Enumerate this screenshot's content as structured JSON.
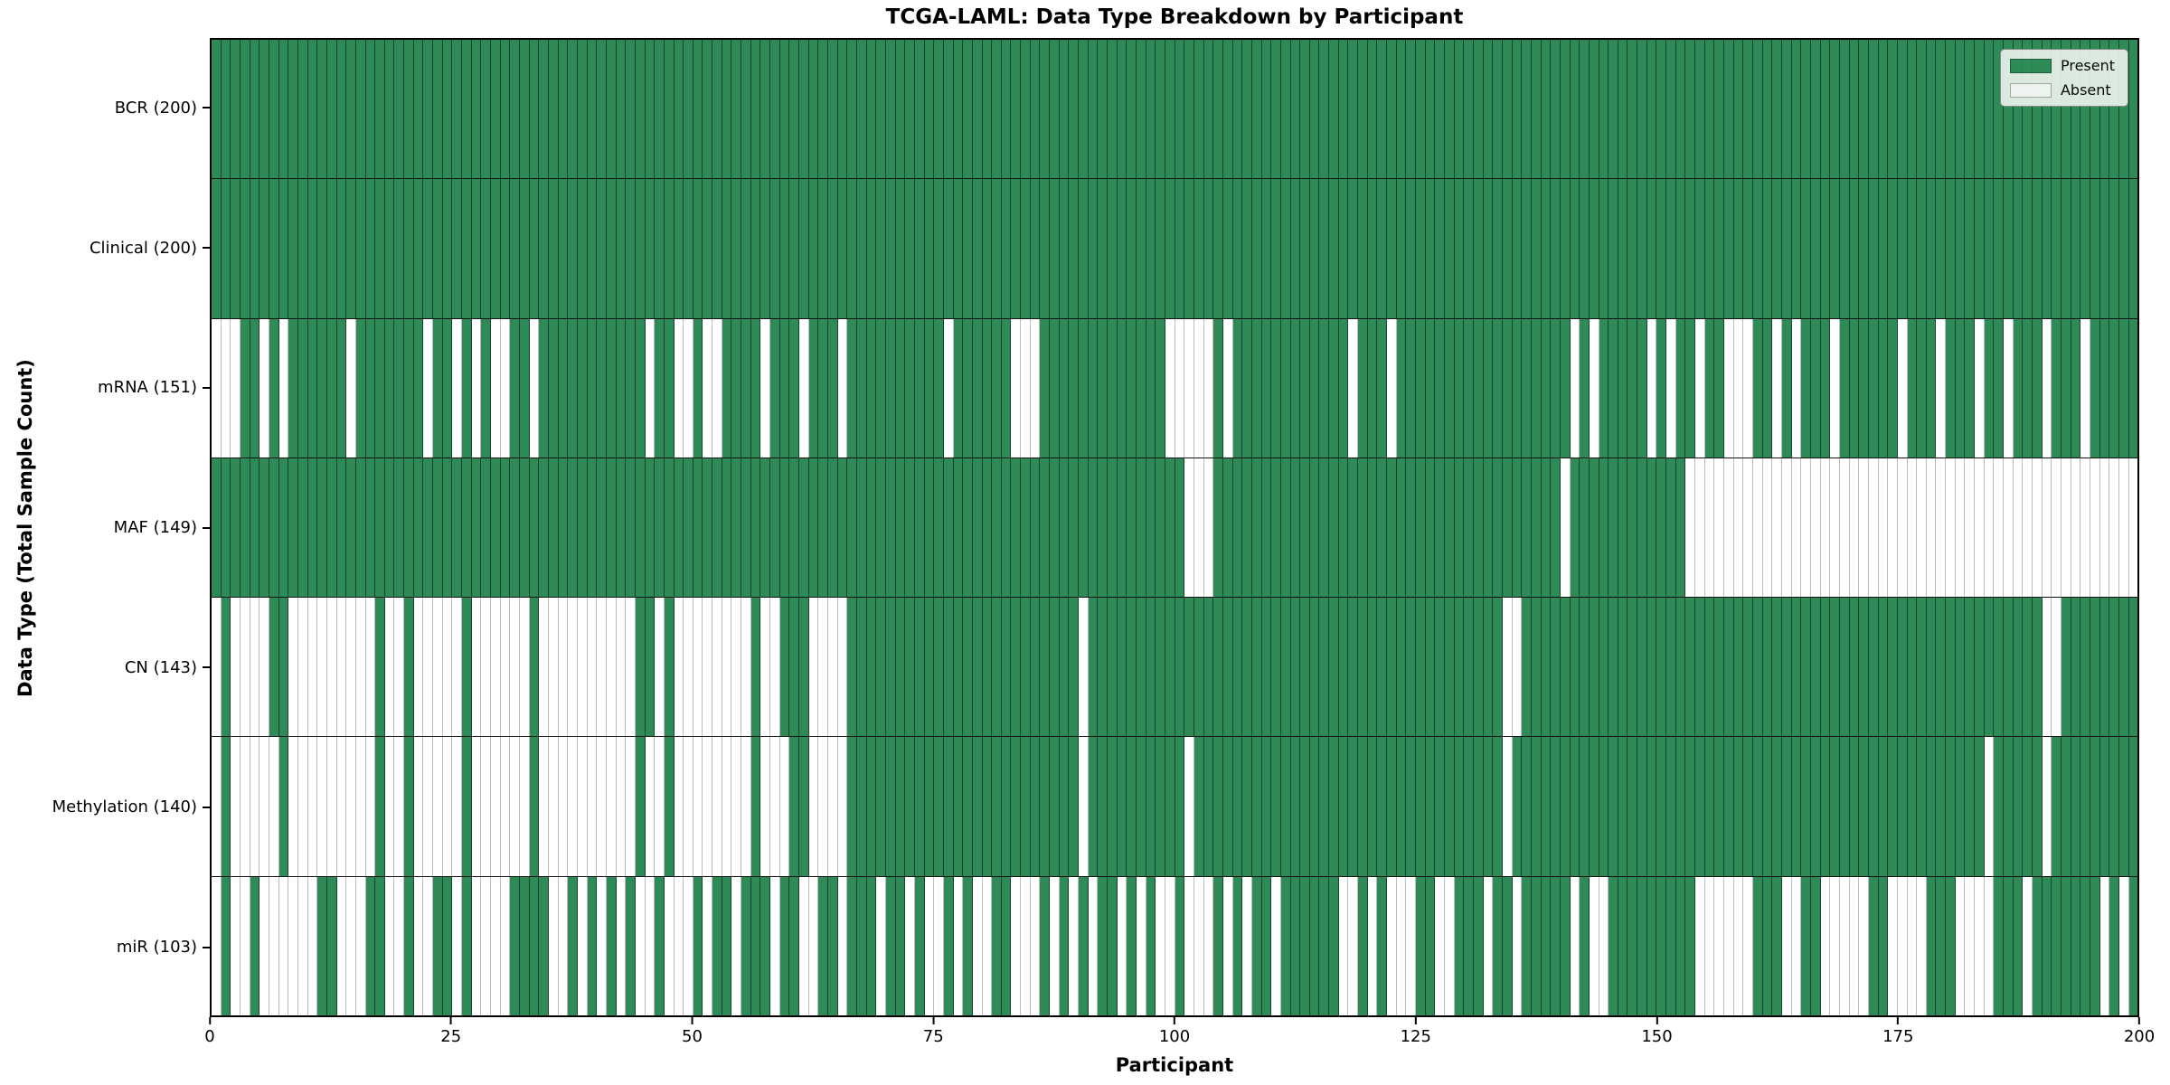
{
  "title": "TCGA-LAML: Data Type Breakdown by Participant",
  "axes": {
    "x_label": "Participant",
    "y_label": "Data Type (Total Sample Count)",
    "x_ticks": [
      0,
      25,
      50,
      75,
      100,
      125,
      150,
      175,
      200
    ]
  },
  "legend": {
    "items": [
      {
        "label": "Present",
        "key": "present"
      },
      {
        "label": "Absent",
        "key": "absent"
      }
    ],
    "position": "upper right"
  },
  "colors": {
    "present": "#2e8b57",
    "absent": "#ffffff",
    "present_edge": "rgba(0,0,0,0.5)",
    "absent_edge": "#bcbcbc",
    "row_separator": "#111111",
    "plot_border": "#000000",
    "legend_bg": "#ebf1eb"
  },
  "chart_data": {
    "type": "heatmap",
    "title": "TCGA-LAML: Data Type Breakdown by Participant",
    "xlabel": "Participant",
    "ylabel": "Data Type (Total Sample Count)",
    "x_range": [
      0,
      200
    ],
    "n_participants": 200,
    "grid": false,
    "legend_position": "upper right",
    "value_encoding": {
      "present": 1,
      "absent": 0
    },
    "rows": [
      {
        "name": "BCR",
        "label": "BCR (200)",
        "present_count": 200,
        "absent_participants": []
      },
      {
        "name": "Clinical",
        "label": "Clinical (200)",
        "present_count": 200,
        "absent_participants": []
      },
      {
        "name": "mRNA",
        "label": "mRNA (151)",
        "present_count": 151,
        "absent_participants": [
          0,
          1,
          2,
          5,
          7,
          14,
          22,
          25,
          27,
          29,
          30,
          33,
          45,
          48,
          49,
          51,
          52,
          57,
          61,
          65,
          76,
          83,
          84,
          85,
          99,
          100,
          101,
          102,
          103,
          105,
          118,
          122,
          141,
          143,
          149,
          151,
          154,
          157,
          158,
          159,
          162,
          164,
          168,
          175,
          179,
          183,
          186,
          190,
          194
        ]
      },
      {
        "name": "MAF",
        "label": "MAF (149)",
        "present_count": 149,
        "absent_participants": [
          101,
          102,
          103,
          140,
          153,
          154,
          155,
          156,
          157,
          158,
          159,
          160,
          161,
          162,
          163,
          164,
          165,
          166,
          167,
          168,
          169,
          170,
          171,
          172,
          173,
          174,
          175,
          176,
          177,
          178,
          179,
          180,
          181,
          182,
          183,
          184,
          185,
          186,
          187,
          188,
          189,
          190,
          191,
          192,
          193,
          194,
          195,
          196,
          197,
          198,
          199
        ]
      },
      {
        "name": "CN",
        "label": "CN (143)",
        "present_count": 143,
        "absent_participants": [
          0,
          2,
          3,
          4,
          5,
          8,
          9,
          10,
          11,
          12,
          13,
          14,
          15,
          16,
          18,
          19,
          21,
          22,
          23,
          24,
          25,
          27,
          28,
          29,
          30,
          31,
          32,
          34,
          35,
          36,
          37,
          38,
          39,
          40,
          41,
          42,
          43,
          46,
          48,
          49,
          50,
          51,
          52,
          53,
          54,
          55,
          57,
          58,
          62,
          63,
          64,
          65,
          90,
          134,
          135,
          190,
          191
        ]
      },
      {
        "name": "Methylation",
        "label": "Methylation (140)",
        "present_count": 140,
        "absent_participants": [
          0,
          2,
          3,
          4,
          5,
          6,
          8,
          9,
          10,
          11,
          12,
          13,
          14,
          15,
          16,
          18,
          19,
          21,
          22,
          23,
          24,
          25,
          27,
          28,
          29,
          30,
          31,
          32,
          34,
          35,
          36,
          37,
          38,
          39,
          40,
          41,
          42,
          43,
          45,
          46,
          48,
          49,
          50,
          51,
          52,
          53,
          54,
          55,
          57,
          58,
          59,
          62,
          63,
          64,
          65,
          90,
          101,
          134,
          184,
          190
        ]
      },
      {
        "name": "miR",
        "label": "miR (103)",
        "present_count": 103,
        "absent_participants": [
          0,
          2,
          3,
          5,
          6,
          7,
          8,
          9,
          10,
          13,
          14,
          15,
          18,
          19,
          21,
          22,
          25,
          27,
          28,
          29,
          30,
          35,
          36,
          38,
          40,
          42,
          44,
          45,
          47,
          48,
          49,
          51,
          54,
          58,
          61,
          62,
          65,
          69,
          72,
          74,
          75,
          77,
          79,
          80,
          83,
          84,
          85,
          87,
          89,
          91,
          94,
          96,
          98,
          99,
          101,
          102,
          103,
          105,
          107,
          110,
          117,
          118,
          120,
          122,
          123,
          124,
          127,
          128,
          132,
          135,
          141,
          143,
          144,
          154,
          155,
          156,
          157,
          158,
          159,
          163,
          164,
          167,
          168,
          169,
          170,
          171,
          174,
          175,
          176,
          177,
          181,
          182,
          183,
          184,
          188,
          196,
          198
        ]
      }
    ]
  }
}
